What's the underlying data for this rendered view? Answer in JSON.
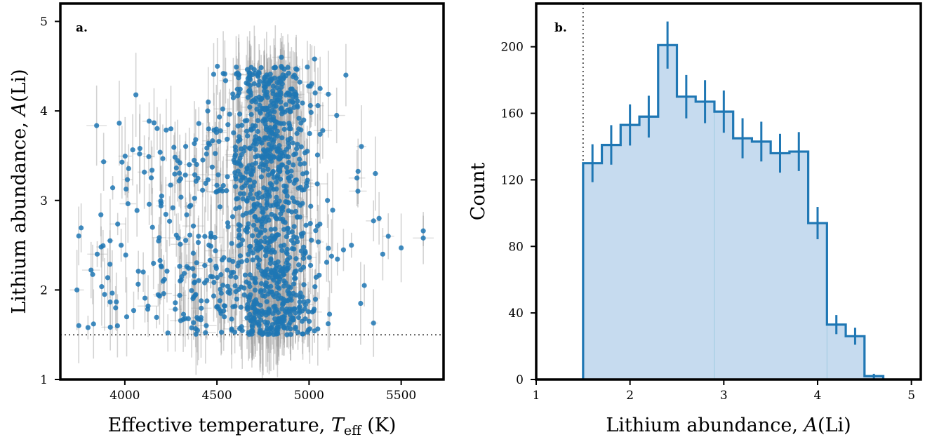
{
  "figure": {
    "panels": [
      "a.",
      "b."
    ]
  },
  "colors": {
    "points": "#1f77b4",
    "errorbars": "#9e9e9e",
    "hist_fill": "#c6dbef",
    "hist_line": "#1f77b4",
    "threshold_line": "#555555"
  },
  "chart_data": [
    {
      "type": "scatter",
      "panel_label": "a.",
      "xlabel_parts": [
        "Effective temperature, ",
        "T",
        "eff",
        " (K)"
      ],
      "ylabel_parts": [
        "Lithium abundance, ",
        "A",
        "(Li)"
      ],
      "xlim": [
        3650,
        5730
      ],
      "ylim": [
        1,
        5.2
      ],
      "xticks": [
        4000,
        4500,
        5000,
        5500
      ],
      "yticks": [
        1,
        2,
        3,
        4,
        5
      ],
      "threshold": {
        "orientation": "horizontal",
        "value": 1.5,
        "style": "dotted"
      },
      "error_bars": true,
      "approx_point_count": 1200,
      "sample_points": [
        [
          3740,
          2.0
        ],
        [
          3800,
          1.58
        ],
        [
          3830,
          1.62
        ],
        [
          3850,
          2.4
        ],
        [
          3870,
          2.84
        ],
        [
          3890,
          1.95
        ],
        [
          3920,
          2.55
        ],
        [
          3950,
          1.8
        ],
        [
          3960,
          1.6
        ],
        [
          3980,
          2.5
        ],
        [
          4010,
          1.7
        ],
        [
          4060,
          4.18
        ],
        [
          4080,
          3.52
        ],
        [
          4100,
          2.2
        ],
        [
          4150,
          2.7
        ],
        [
          4200,
          3.05
        ],
        [
          4250,
          3.8
        ],
        [
          4300,
          2.1
        ],
        [
          4350,
          3.4
        ],
        [
          4400,
          2.6
        ],
        [
          4450,
          4.0
        ],
        [
          4500,
          3.1
        ],
        [
          4540,
          1.7
        ],
        [
          4580,
          1.55
        ],
        [
          4620,
          4.2
        ],
        [
          4680,
          4.35
        ],
        [
          4720,
          4.4
        ],
        [
          4780,
          4.3
        ],
        [
          4800,
          3.3
        ],
        [
          4820,
          2.2
        ],
        [
          4850,
          4.6
        ],
        [
          4880,
          1.5
        ],
        [
          4900,
          3.8
        ],
        [
          4930,
          4.15
        ],
        [
          4960,
          2.6
        ],
        [
          4990,
          3.55
        ],
        [
          5030,
          4.58
        ],
        [
          5060,
          4.25
        ],
        [
          5100,
          3.0
        ],
        [
          5150,
          3.95
        ],
        [
          5200,
          4.4
        ],
        [
          5230,
          2.5
        ],
        [
          5260,
          3.25
        ],
        [
          5280,
          1.85
        ],
        [
          5300,
          2.05
        ],
        [
          5360,
          3.3
        ],
        [
          5380,
          2.8
        ],
        [
          5400,
          2.4
        ],
        [
          5430,
          2.6
        ],
        [
          5500,
          2.47
        ],
        [
          5620,
          2.66
        ],
        [
          5620,
          2.58
        ]
      ]
    },
    {
      "type": "bar",
      "style": "step-histogram",
      "panel_label": "b.",
      "xlabel_parts": [
        "Lithium abundance, ",
        "A",
        "(Li)"
      ],
      "ylabel": "Count",
      "xlim": [
        1,
        5.1
      ],
      "ylim": [
        0,
        226
      ],
      "xticks": [
        1,
        2,
        3,
        4,
        5
      ],
      "yticks": [
        0,
        40,
        80,
        120,
        160,
        200
      ],
      "threshold": {
        "orientation": "vertical",
        "value": 1.5,
        "style": "dotted"
      },
      "bins": [
        {
          "x0": 1.5,
          "x1": 1.7,
          "count": 130
        },
        {
          "x0": 1.7,
          "x1": 1.9,
          "count": 141
        },
        {
          "x0": 1.9,
          "x1": 2.1,
          "count": 153
        },
        {
          "x0": 2.1,
          "x1": 2.3,
          "count": 158
        },
        {
          "x0": 2.3,
          "x1": 2.5,
          "count": 201
        },
        {
          "x0": 2.5,
          "x1": 2.7,
          "count": 170
        },
        {
          "x0": 2.7,
          "x1": 2.9,
          "count": 167
        },
        {
          "x0": 2.9,
          "x1": 3.1,
          "count": 161
        },
        {
          "x0": 3.1,
          "x1": 3.3,
          "count": 145
        },
        {
          "x0": 3.3,
          "x1": 3.5,
          "count": 143
        },
        {
          "x0": 3.5,
          "x1": 3.7,
          "count": 136
        },
        {
          "x0": 3.7,
          "x1": 3.9,
          "count": 137
        },
        {
          "x0": 3.9,
          "x1": 4.1,
          "count": 94
        },
        {
          "x0": 4.1,
          "x1": 4.3,
          "count": 33
        },
        {
          "x0": 4.3,
          "x1": 4.5,
          "count": 26
        },
        {
          "x0": 4.5,
          "x1": 4.7,
          "count": 2
        }
      ],
      "error_bars": true
    }
  ]
}
